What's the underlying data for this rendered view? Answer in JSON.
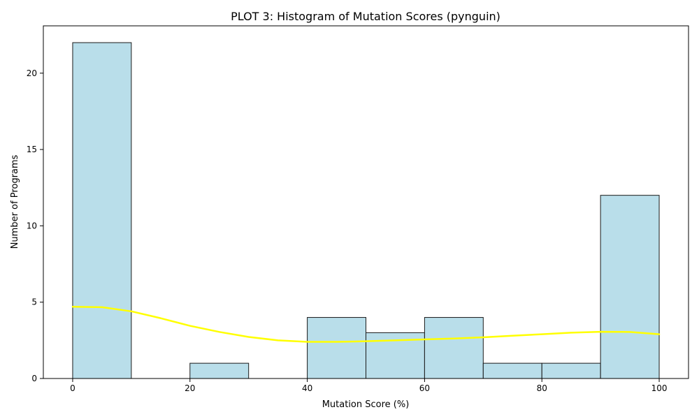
{
  "chart_data": {
    "type": "bar",
    "title": "PLOT 3: Histogram of Mutation Scores (pynguin)",
    "xlabel": "Mutation Score (%)",
    "ylabel": "Number of Programs",
    "xlim": [
      -5,
      105
    ],
    "ylim": [
      0,
      23.1
    ],
    "xticks": [
      0,
      20,
      40,
      60,
      80,
      100
    ],
    "yticks": [
      0,
      5,
      10,
      15,
      20
    ],
    "bins": [
      {
        "start": 0,
        "end": 10,
        "count": 22
      },
      {
        "start": 10,
        "end": 20,
        "count": 0
      },
      {
        "start": 20,
        "end": 30,
        "count": 1
      },
      {
        "start": 30,
        "end": 40,
        "count": 0
      },
      {
        "start": 40,
        "end": 50,
        "count": 4
      },
      {
        "start": 50,
        "end": 60,
        "count": 3
      },
      {
        "start": 60,
        "end": 70,
        "count": 4
      },
      {
        "start": 70,
        "end": 80,
        "count": 1
      },
      {
        "start": 80,
        "end": 90,
        "count": 1
      },
      {
        "start": 90,
        "end": 100,
        "count": 12
      }
    ],
    "kde": {
      "x": [
        0,
        5,
        10,
        15,
        20,
        25,
        30,
        35,
        40,
        45,
        50,
        55,
        60,
        65,
        70,
        75,
        80,
        85,
        90,
        95,
        100
      ],
      "y": [
        4.7,
        4.67,
        4.4,
        3.95,
        3.45,
        3.05,
        2.72,
        2.5,
        2.4,
        2.4,
        2.44,
        2.5,
        2.56,
        2.62,
        2.7,
        2.8,
        2.9,
        3.0,
        3.06,
        3.05,
        2.9
      ]
    },
    "grid": false,
    "colors": {
      "bar_fill": "#add8e6",
      "bar_edge": "#1a1a1a",
      "kde_line": "#ffff00"
    }
  }
}
